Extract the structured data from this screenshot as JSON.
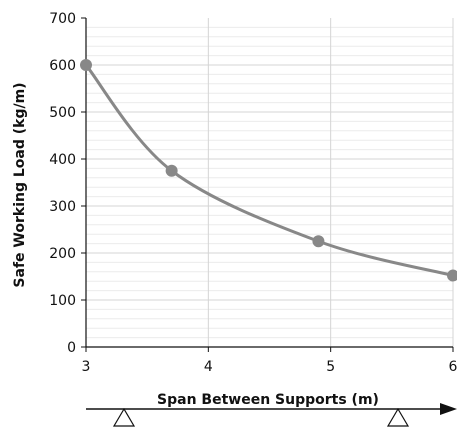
{
  "chart_data": {
    "type": "line",
    "title": "",
    "xlabel": "Span Between Supports (m)",
    "ylabel": "Safe Working Load (kg/m)",
    "xlim": [
      3,
      6
    ],
    "ylim": [
      0,
      700
    ],
    "x_ticks": [
      3,
      4,
      5,
      6
    ],
    "y_ticks": [
      0,
      100,
      200,
      300,
      400,
      500,
      600,
      700
    ],
    "x_tick_labels": [
      "3",
      "4",
      "5",
      "6"
    ],
    "y_tick_labels": [
      "0",
      "100",
      "200",
      "300",
      "400",
      "500",
      "600",
      "700"
    ],
    "grid": true,
    "legend": "none",
    "series": [
      {
        "x": [
          3,
          3.7,
          4.9,
          6
        ],
        "y": [
          600,
          375,
          225,
          152
        ],
        "color": "#888888"
      }
    ],
    "colors": {
      "line": "#888888",
      "grid": "#dddddd",
      "axis": "#111111"
    }
  }
}
